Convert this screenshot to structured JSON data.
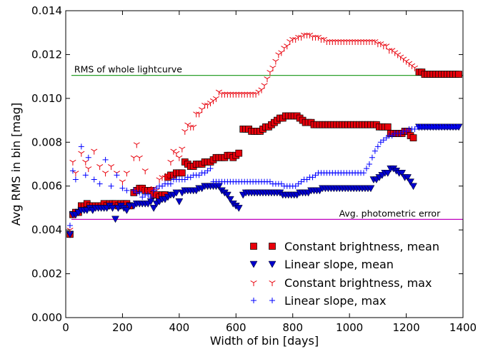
{
  "chart_data": {
    "type": "scatter",
    "xlabel": "Width of bin [days]",
    "ylabel": "Avg RMS in bin [mag]",
    "xlim": [
      0,
      1400
    ],
    "ylim": [
      0,
      0.014
    ],
    "xticks": [
      0,
      200,
      400,
      600,
      800,
      1000,
      1200,
      1400
    ],
    "xtick_labels": [
      "0",
      "200",
      "400",
      "600",
      "800",
      "1000",
      "1200",
      "1400"
    ],
    "yticks": [
      0,
      0.002,
      0.004,
      0.006,
      0.008,
      0.01,
      0.012,
      0.014
    ],
    "ytick_labels": [
      "0.000",
      "0.002",
      "0.004",
      "0.006",
      "0.008",
      "0.010",
      "0.012",
      "0.014"
    ],
    "grid": false,
    "legend_position": "bottom-right",
    "reference_lines": [
      {
        "label": "RMS of whole lightcurve",
        "y": 0.01105,
        "color": "#2ca02c"
      },
      {
        "label": "Avg. photometric error",
        "y": 0.00448,
        "color": "#bf00bf"
      }
    ],
    "series": [
      {
        "name": "Constant brightness, mean",
        "marker": "square",
        "color": "#e8000b",
        "x": [
          15,
          25,
          35,
          45,
          55,
          65,
          75,
          85,
          95,
          105,
          115,
          125,
          135,
          145,
          155,
          165,
          175,
          185,
          195,
          205,
          215,
          225,
          240,
          250,
          260,
          270,
          280,
          290,
          300,
          310,
          320,
          330,
          340,
          350,
          360,
          370,
          380,
          390,
          400,
          410,
          420,
          430,
          440,
          450,
          460,
          470,
          480,
          490,
          500,
          510,
          520,
          530,
          540,
          550,
          560,
          570,
          580,
          590,
          600,
          610,
          625,
          635,
          645,
          655,
          665,
          675,
          685,
          695,
          705,
          715,
          725,
          735,
          745,
          755,
          765,
          775,
          785,
          795,
          805,
          815,
          825,
          835,
          845,
          855,
          865,
          875,
          885,
          895,
          905,
          915,
          925,
          935,
          945,
          955,
          965,
          975,
          985,
          995,
          1005,
          1015,
          1025,
          1035,
          1045,
          1055,
          1065,
          1075,
          1085,
          1095,
          1105,
          1115,
          1125,
          1135,
          1145,
          1155,
          1165,
          1175,
          1185,
          1195,
          1205,
          1215,
          1225,
          1245,
          1255,
          1265,
          1275,
          1285,
          1295,
          1305,
          1315,
          1325,
          1335,
          1345,
          1355,
          1365,
          1375,
          1385
        ],
        "y": [
          0.0038,
          0.0047,
          0.0048,
          0.0048,
          0.0051,
          0.0051,
          0.0052,
          0.0051,
          0.0051,
          0.0051,
          0.0051,
          0.0051,
          0.0052,
          0.0051,
          0.0052,
          0.0052,
          0.0052,
          0.0051,
          0.0052,
          0.0052,
          0.0052,
          0.0051,
          0.0057,
          0.0058,
          0.0059,
          0.0059,
          0.0058,
          0.0058,
          0.0058,
          0.0056,
          0.0056,
          0.0055,
          0.0056,
          0.0056,
          0.0064,
          0.0065,
          0.0065,
          0.0066,
          0.0066,
          0.0066,
          0.0071,
          0.007,
          0.0069,
          0.0069,
          0.007,
          0.007,
          0.007,
          0.0071,
          0.0071,
          0.0071,
          0.0072,
          0.0073,
          0.0073,
          0.0073,
          0.0073,
          0.0074,
          0.0074,
          0.0073,
          0.0074,
          0.0075,
          0.0086,
          0.0086,
          0.0086,
          0.0085,
          0.0085,
          0.0085,
          0.0085,
          0.0086,
          0.0087,
          0.0087,
          0.0088,
          0.0089,
          0.009,
          0.0091,
          0.0091,
          0.0092,
          0.0092,
          0.0092,
          0.0092,
          0.0092,
          0.0091,
          0.009,
          0.0089,
          0.0089,
          0.0089,
          0.0088,
          0.0088,
          0.0088,
          0.0088,
          0.0088,
          0.0088,
          0.0088,
          0.0088,
          0.0088,
          0.0088,
          0.0088,
          0.0088,
          0.0088,
          0.0088,
          0.0088,
          0.0088,
          0.0088,
          0.0088,
          0.0088,
          0.0088,
          0.0088,
          0.0088,
          0.0088,
          0.0087,
          0.0087,
          0.0087,
          0.0087,
          0.0084,
          0.0084,
          0.0084,
          0.0084,
          0.0084,
          0.0085,
          0.0085,
          0.0083,
          0.0082,
          0.0112,
          0.0112,
          0.0111,
          0.0111,
          0.0111,
          0.0111,
          0.0111,
          0.0111,
          0.0111,
          0.0111,
          0.0111,
          0.0111,
          0.0111,
          0.0111,
          0.0111
        ]
      },
      {
        "name": "Linear slope, mean",
        "marker": "triangle-down",
        "color": "#0000cc",
        "x": [
          15,
          25,
          35,
          45,
          55,
          65,
          75,
          85,
          95,
          105,
          115,
          125,
          135,
          145,
          155,
          165,
          175,
          185,
          195,
          205,
          215,
          225,
          240,
          250,
          260,
          270,
          280,
          290,
          300,
          310,
          320,
          330,
          340,
          350,
          360,
          370,
          380,
          390,
          400,
          410,
          420,
          430,
          440,
          450,
          460,
          470,
          480,
          490,
          500,
          510,
          520,
          530,
          540,
          550,
          560,
          570,
          580,
          590,
          600,
          610,
          625,
          635,
          645,
          655,
          665,
          675,
          685,
          695,
          705,
          715,
          725,
          735,
          745,
          755,
          765,
          775,
          785,
          795,
          805,
          815,
          825,
          835,
          845,
          855,
          865,
          875,
          885,
          895,
          905,
          915,
          925,
          935,
          945,
          955,
          965,
          975,
          985,
          995,
          1005,
          1015,
          1025,
          1035,
          1045,
          1055,
          1065,
          1075,
          1085,
          1095,
          1105,
          1115,
          1125,
          1135,
          1145,
          1155,
          1165,
          1175,
          1185,
          1195,
          1205,
          1215,
          1225,
          1245,
          1255,
          1265,
          1275,
          1285,
          1295,
          1305,
          1315,
          1325,
          1335,
          1345,
          1355,
          1365,
          1375,
          1385
        ],
        "y": [
          0.0038,
          0.0047,
          0.0047,
          0.0048,
          0.0049,
          0.0049,
          0.0049,
          0.005,
          0.0049,
          0.005,
          0.005,
          0.005,
          0.005,
          0.005,
          0.0051,
          0.005,
          0.0045,
          0.005,
          0.0051,
          0.005,
          0.0049,
          0.0051,
          0.0051,
          0.0052,
          0.0052,
          0.0052,
          0.0052,
          0.0052,
          0.0053,
          0.005,
          0.0052,
          0.0053,
          0.0054,
          0.0054,
          0.0055,
          0.0056,
          0.0056,
          0.0057,
          0.0053,
          0.0057,
          0.0058,
          0.0058,
          0.0058,
          0.0058,
          0.0058,
          0.0059,
          0.0059,
          0.006,
          0.006,
          0.006,
          0.006,
          0.006,
          0.006,
          0.0058,
          0.0057,
          0.0056,
          0.0054,
          0.0052,
          0.0051,
          0.005,
          0.0056,
          0.0057,
          0.0057,
          0.0057,
          0.0057,
          0.0057,
          0.0057,
          0.0057,
          0.0057,
          0.0057,
          0.0057,
          0.0057,
          0.0057,
          0.0057,
          0.0056,
          0.0056,
          0.0056,
          0.0056,
          0.0056,
          0.0056,
          0.0057,
          0.0057,
          0.0057,
          0.0057,
          0.0058,
          0.0058,
          0.0058,
          0.0058,
          0.0059,
          0.0059,
          0.0059,
          0.0059,
          0.0059,
          0.0059,
          0.0059,
          0.0059,
          0.0059,
          0.0059,
          0.0059,
          0.0059,
          0.0059,
          0.0059,
          0.0059,
          0.0059,
          0.0059,
          0.0059,
          0.0063,
          0.0063,
          0.0064,
          0.0065,
          0.0066,
          0.0066,
          0.0068,
          0.0068,
          0.0067,
          0.0066,
          0.0066,
          0.0064,
          0.0064,
          0.0062,
          0.006,
          0.0087,
          0.0087,
          0.0087,
          0.0087,
          0.0087,
          0.0087,
          0.0087,
          0.0087,
          0.0087,
          0.0087,
          0.0087,
          0.0087,
          0.0087,
          0.0087,
          0.0087
        ]
      },
      {
        "name": "Constant brightness, max",
        "marker": "tri-down",
        "color": "#e8000b",
        "x": [
          15,
          25,
          35,
          55,
          70,
          80,
          100,
          120,
          140,
          160,
          180,
          200,
          215,
          240,
          250,
          260,
          270,
          280,
          290,
          300,
          310,
          320,
          330,
          340,
          350,
          360,
          370,
          380,
          390,
          400,
          410,
          420,
          430,
          440,
          450,
          460,
          470,
          480,
          490,
          500,
          510,
          520,
          530,
          540,
          550,
          560,
          570,
          580,
          590,
          600,
          610,
          620,
          630,
          640,
          650,
          660,
          670,
          680,
          690,
          700,
          710,
          720,
          730,
          740,
          750,
          760,
          770,
          780,
          790,
          800,
          810,
          820,
          830,
          840,
          850,
          860,
          870,
          880,
          890,
          900,
          910,
          920,
          930,
          940,
          950,
          960,
          970,
          980,
          990,
          1000,
          1010,
          1020,
          1030,
          1040,
          1050,
          1060,
          1070,
          1080,
          1090,
          1100,
          1110,
          1120,
          1130,
          1140,
          1150,
          1160,
          1170,
          1180,
          1190,
          1200,
          1210,
          1220,
          1230
        ],
        "y": [
          0.004,
          0.0071,
          0.0066,
          0.0075,
          0.0071,
          0.0068,
          0.0076,
          0.0069,
          0.0066,
          0.0069,
          0.0066,
          0.0062,
          0.0066,
          0.0073,
          0.0079,
          0.0073,
          0.0059,
          0.0067,
          0.0058,
          0.0057,
          0.0059,
          0.0058,
          0.0063,
          0.0064,
          0.0064,
          0.0065,
          0.0071,
          0.0076,
          0.0075,
          0.0073,
          0.0077,
          0.0085,
          0.0088,
          0.0087,
          0.0087,
          0.0093,
          0.0093,
          0.0095,
          0.0097,
          0.0097,
          0.0098,
          0.0099,
          0.01,
          0.0103,
          0.0102,
          0.0102,
          0.0102,
          0.0102,
          0.0102,
          0.0102,
          0.0102,
          0.0102,
          0.0102,
          0.0102,
          0.0102,
          0.0102,
          0.0102,
          0.0103,
          0.0104,
          0.0106,
          0.0109,
          0.0112,
          0.0114,
          0.0117,
          0.012,
          0.0121,
          0.0123,
          0.0124,
          0.0126,
          0.0127,
          0.0127,
          0.0128,
          0.0128,
          0.0129,
          0.0129,
          0.0129,
          0.0128,
          0.0128,
          0.0128,
          0.0127,
          0.0127,
          0.0126,
          0.0126,
          0.0126,
          0.0126,
          0.0126,
          0.0126,
          0.0126,
          0.0126,
          0.0126,
          0.0126,
          0.0126,
          0.0126,
          0.0126,
          0.0126,
          0.0126,
          0.0126,
          0.0126,
          0.0126,
          0.0125,
          0.0125,
          0.0124,
          0.0124,
          0.0122,
          0.0122,
          0.0121,
          0.012,
          0.0119,
          0.0118,
          0.0117,
          0.0116,
          0.0115,
          0.0114
        ]
      },
      {
        "name": "Linear slope, max",
        "marker": "plus",
        "color": "#0000ff",
        "x": [
          15,
          25,
          35,
          55,
          70,
          80,
          100,
          120,
          140,
          160,
          180,
          200,
          215,
          240,
          250,
          260,
          270,
          280,
          290,
          300,
          310,
          320,
          330,
          340,
          350,
          360,
          370,
          380,
          390,
          400,
          410,
          420,
          430,
          440,
          450,
          460,
          470,
          480,
          490,
          500,
          510,
          520,
          530,
          540,
          550,
          560,
          570,
          580,
          590,
          600,
          610,
          620,
          630,
          640,
          650,
          660,
          670,
          680,
          690,
          700,
          710,
          720,
          730,
          740,
          750,
          760,
          770,
          780,
          790,
          800,
          810,
          820,
          830,
          840,
          850,
          860,
          870,
          880,
          890,
          900,
          910,
          920,
          930,
          940,
          950,
          960,
          970,
          980,
          990,
          1000,
          1010,
          1020,
          1030,
          1040,
          1050,
          1060,
          1070,
          1080,
          1090,
          1100,
          1110,
          1120,
          1130,
          1140,
          1150,
          1160,
          1170,
          1180,
          1190,
          1200,
          1210,
          1220,
          1230,
          1240,
          1250,
          1260,
          1270,
          1280,
          1290,
          1300,
          1310,
          1320,
          1330,
          1340,
          1350,
          1360,
          1370,
          1380
        ],
        "y": [
          0.0042,
          0.0067,
          0.0063,
          0.0078,
          0.0065,
          0.0073,
          0.0063,
          0.0061,
          0.0072,
          0.006,
          0.0065,
          0.0059,
          0.0058,
          0.0058,
          0.0057,
          0.0057,
          0.0055,
          0.0056,
          0.0056,
          0.0055,
          0.0058,
          0.0059,
          0.006,
          0.006,
          0.0061,
          0.0061,
          0.0061,
          0.0063,
          0.0063,
          0.0063,
          0.0063,
          0.0063,
          0.0064,
          0.0064,
          0.0065,
          0.0065,
          0.0065,
          0.0066,
          0.0066,
          0.0067,
          0.0068,
          0.0062,
          0.0062,
          0.0062,
          0.0062,
          0.0062,
          0.0062,
          0.0062,
          0.0062,
          0.0062,
          0.0062,
          0.0062,
          0.0062,
          0.0062,
          0.0062,
          0.0062,
          0.0062,
          0.0062,
          0.0062,
          0.0062,
          0.0062,
          0.0062,
          0.0061,
          0.0061,
          0.0061,
          0.0061,
          0.006,
          0.006,
          0.006,
          0.006,
          0.006,
          0.0061,
          0.0062,
          0.0063,
          0.0063,
          0.0064,
          0.0064,
          0.0065,
          0.0066,
          0.0066,
          0.0066,
          0.0066,
          0.0066,
          0.0066,
          0.0066,
          0.0066,
          0.0066,
          0.0066,
          0.0066,
          0.0066,
          0.0066,
          0.0066,
          0.0066,
          0.0066,
          0.0066,
          0.0068,
          0.007,
          0.0073,
          0.0076,
          0.0078,
          0.008,
          0.0081,
          0.0082,
          0.0083,
          0.0083,
          0.0084,
          0.0084,
          0.0084,
          0.0085,
          0.0085,
          0.0086,
          0.0086,
          0.0086,
          0.0087,
          0.0087,
          0.0087,
          0.0087,
          0.0087,
          0.0087,
          0.0087,
          0.0087,
          0.0087,
          0.0087,
          0.0087,
          0.0087,
          0.0087,
          0.0087,
          0.0087
        ]
      }
    ]
  }
}
